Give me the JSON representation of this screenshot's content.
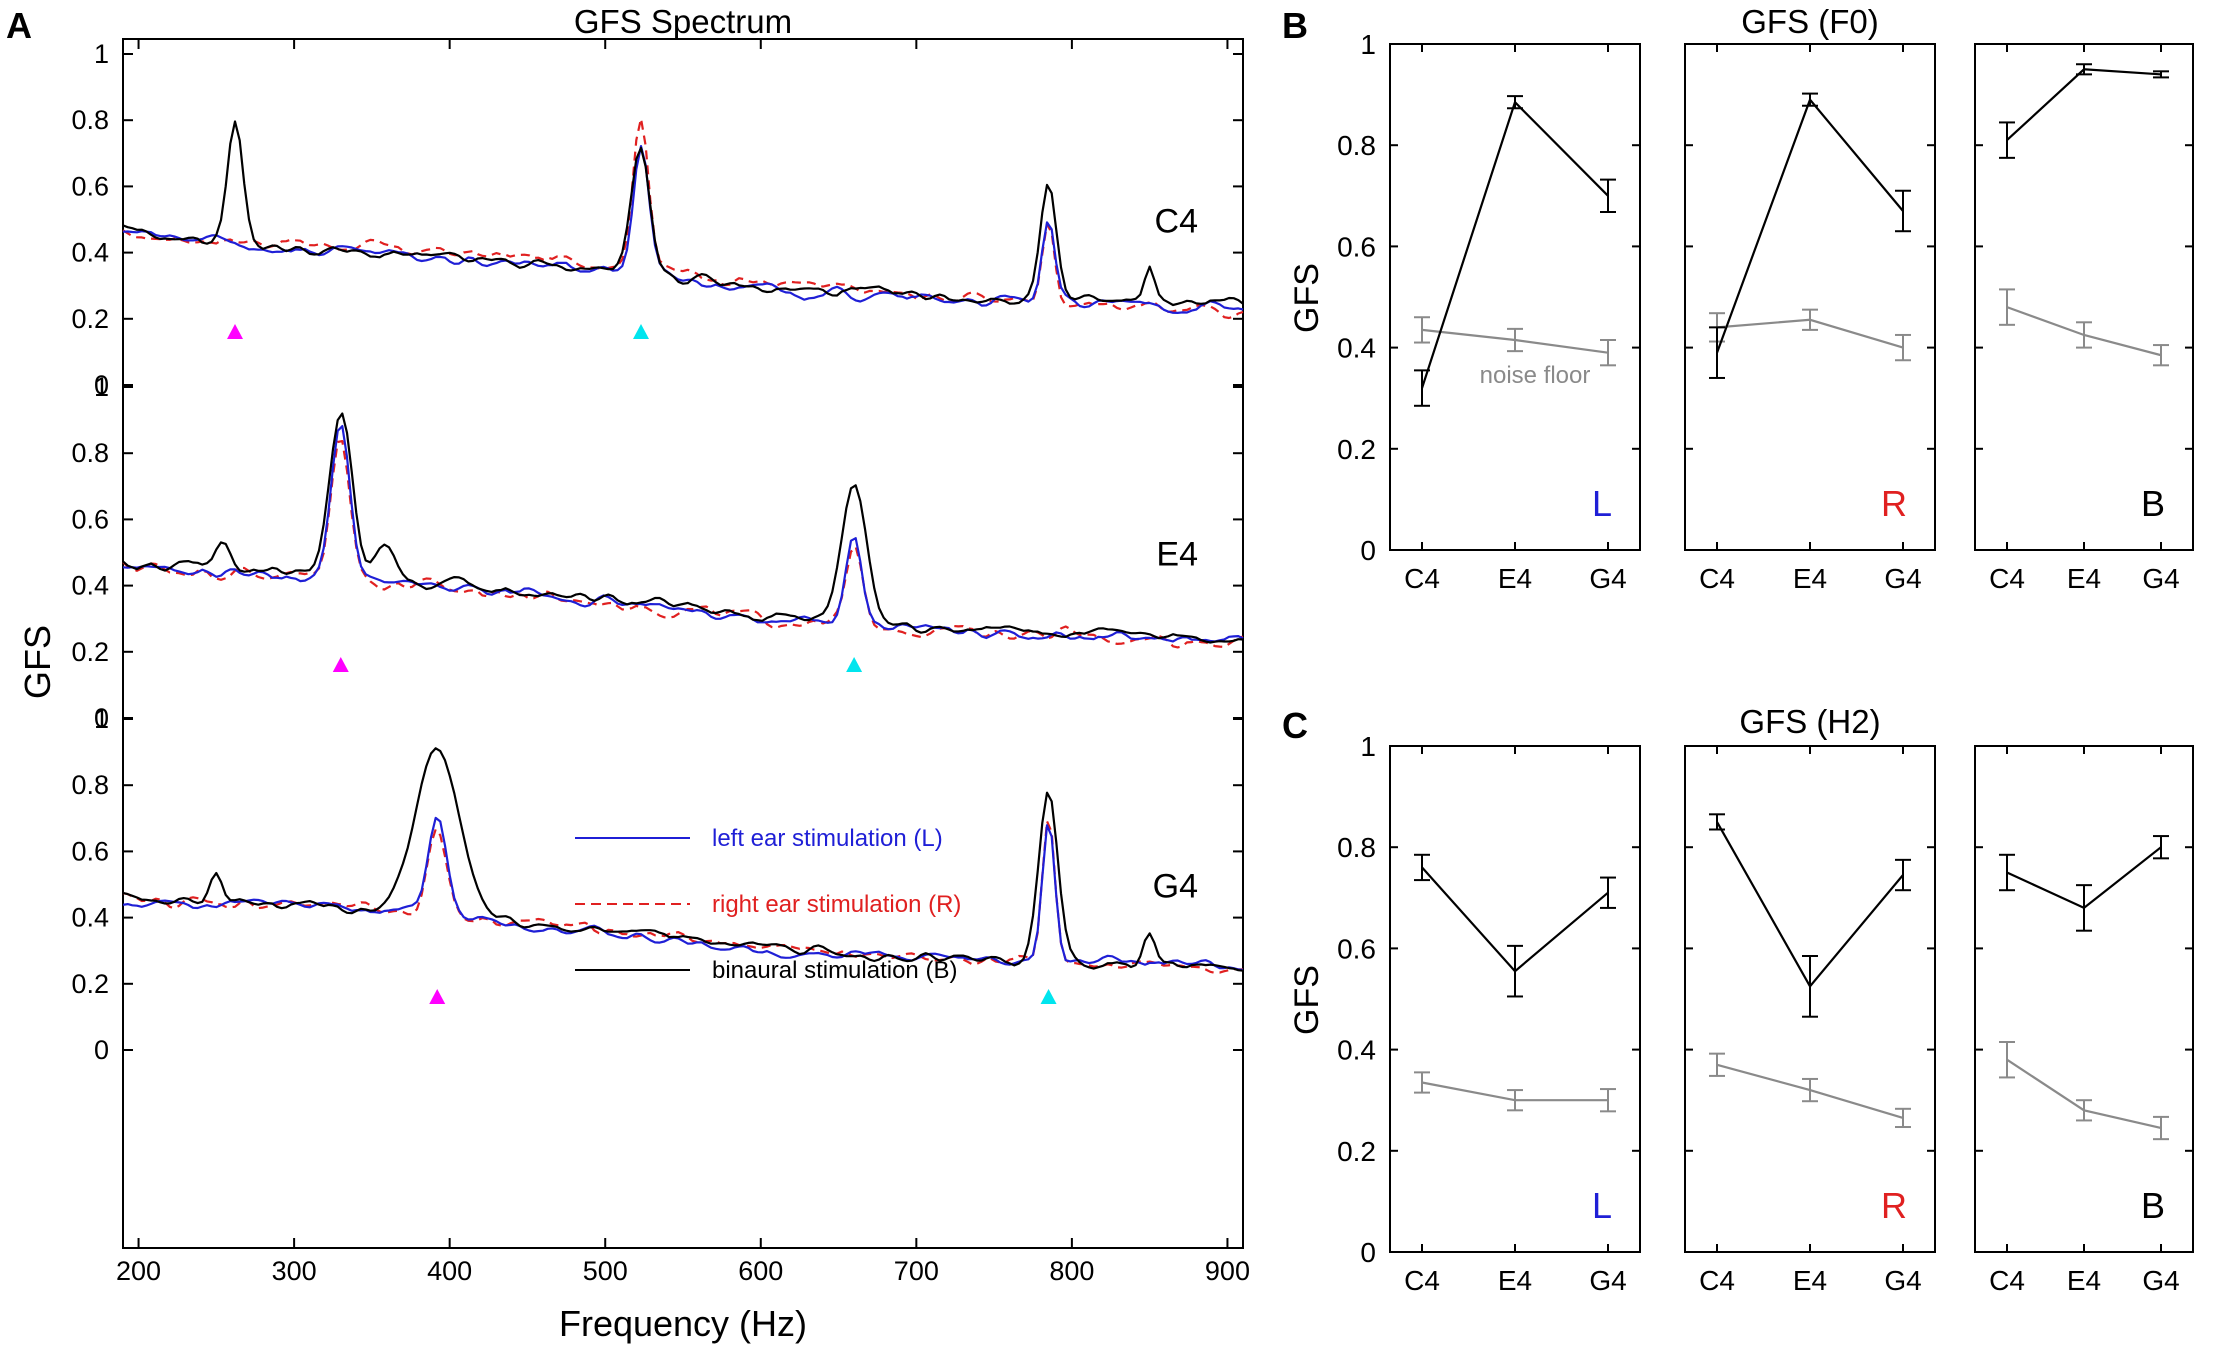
{
  "figure": {
    "panel_a_letter": "A",
    "panel_b_letter": "B",
    "panel_c_letter": "C"
  },
  "colors": {
    "left": "#1f1fd6",
    "right": "#e02020",
    "binaural": "#000000",
    "noise": "#8a8a8a",
    "f0_marker": "#ff00ff",
    "h2_marker": "#00e5ee"
  },
  "chart_data": [
    {
      "id": "spectrum",
      "type": "line",
      "title": "GFS Spectrum",
      "xlabel": "Frequency (Hz)",
      "ylabel": "GFS",
      "xlim": [
        190,
        910
      ],
      "ylim": [
        0,
        1
      ],
      "xticks": [
        200,
        300,
        400,
        500,
        600,
        700,
        800,
        900
      ],
      "yticks": [
        0,
        0.2,
        0.4,
        0.6,
        0.8,
        1
      ],
      "ytick_labels": [
        "0",
        "0.2",
        "0.4",
        "0.6",
        "0.8",
        "1"
      ],
      "legend": [
        {
          "label": "left ear stimulation (L)",
          "series": "left",
          "style": "solid"
        },
        {
          "label": "right ear stimulation (R)",
          "series": "right",
          "style": "dashed"
        },
        {
          "label": "binaural stimulation (B)",
          "series": "binaural",
          "style": "solid"
        }
      ],
      "rows": [
        {
          "note": "C4",
          "f0_marker_hz": 262,
          "h2_marker_hz": 523,
          "marker_level": 0.16,
          "series": {
            "left": {
              "base": [
                [
                  190,
                  0.46
                ],
                [
                  300,
                  0.41
                ],
                [
                  400,
                  0.38
                ],
                [
                  500,
                  0.35
                ],
                [
                  600,
                  0.29
                ],
                [
                  700,
                  0.26
                ],
                [
                  800,
                  0.25
                ],
                [
                  910,
                  0.23
                ]
              ],
              "peaks": [
                [
                  523,
                  0.38,
                  5
                ],
                [
                  785,
                  0.23,
                  4
                ]
              ],
              "noise": 0.03
            },
            "right": {
              "base": [
                [
                  190,
                  0.45
                ],
                [
                  300,
                  0.43
                ],
                [
                  400,
                  0.4
                ],
                [
                  500,
                  0.37
                ],
                [
                  600,
                  0.31
                ],
                [
                  700,
                  0.27
                ],
                [
                  800,
                  0.25
                ],
                [
                  910,
                  0.22
                ]
              ],
              "peaks": [
                [
                  523,
                  0.46,
                  5
                ],
                [
                  785,
                  0.24,
                  4
                ]
              ],
              "noise": 0.03
            },
            "binaural": {
              "base": [
                [
                  190,
                  0.46
                ],
                [
                  300,
                  0.41
                ],
                [
                  400,
                  0.38
                ],
                [
                  500,
                  0.35
                ],
                [
                  600,
                  0.29
                ],
                [
                  700,
                  0.27
                ],
                [
                  800,
                  0.25
                ],
                [
                  910,
                  0.25
                ]
              ],
              "peaks": [
                [
                  262,
                  0.37,
                  5
                ],
                [
                  523,
                  0.38,
                  6
                ],
                [
                  785,
                  0.37,
                  5
                ],
                [
                  850,
                  0.1,
                  3
                ]
              ],
              "noise": 0.03
            }
          },
          "peak_values": {
            "left": [
              0.76,
              0.48
            ],
            "right": [
              0.85,
              0.5
            ],
            "binaural": [
              0.8,
              0.76,
              0.66
            ]
          }
        },
        {
          "note": "E4",
          "f0_marker_hz": 330,
          "h2_marker_hz": 660,
          "marker_level": 0.16,
          "series": {
            "left": {
              "base": [
                [
                  190,
                  0.46
                ],
                [
                  300,
                  0.43
                ],
                [
                  400,
                  0.39
                ],
                [
                  500,
                  0.35
                ],
                [
                  600,
                  0.3
                ],
                [
                  700,
                  0.27
                ],
                [
                  800,
                  0.25
                ],
                [
                  910,
                  0.23
                ]
              ],
              "peaks": [
                [
                  330,
                  0.46,
                  6
                ],
                [
                  660,
                  0.25,
                  5
                ]
              ],
              "noise": 0.03
            },
            "right": {
              "base": [
                [
                  190,
                  0.46
                ],
                [
                  300,
                  0.43
                ],
                [
                  400,
                  0.39
                ],
                [
                  500,
                  0.35
                ],
                [
                  600,
                  0.3
                ],
                [
                  700,
                  0.27
                ],
                [
                  800,
                  0.25
                ],
                [
                  910,
                  0.23
                ]
              ],
              "peaks": [
                [
                  330,
                  0.44,
                  6
                ],
                [
                  660,
                  0.23,
                  5
                ]
              ],
              "noise": 0.035
            },
            "binaural": {
              "base": [
                [
                  190,
                  0.47
                ],
                [
                  300,
                  0.44
                ],
                [
                  400,
                  0.4
                ],
                [
                  500,
                  0.36
                ],
                [
                  600,
                  0.31
                ],
                [
                  700,
                  0.28
                ],
                [
                  800,
                  0.26
                ],
                [
                  910,
                  0.24
                ]
              ],
              "peaks": [
                [
                  330,
                  0.5,
                  7
                ],
                [
                  358,
                  0.12,
                  6
                ],
                [
                  660,
                  0.42,
                  8
                ],
                [
                  255,
                  0.08,
                  5
                ]
              ],
              "noise": 0.03
            }
          },
          "peak_values": {
            "left": [
              0.87,
              0.54
            ],
            "right": [
              0.85,
              0.52
            ],
            "binaural": [
              0.94,
              0.74
            ]
          }
        },
        {
          "note": "G4",
          "f0_marker_hz": 392,
          "h2_marker_hz": 785,
          "marker_level": 0.16,
          "series": {
            "left": {
              "base": [
                [
                  190,
                  0.44
                ],
                [
                  300,
                  0.44
                ],
                [
                  400,
                  0.41
                ],
                [
                  500,
                  0.35
                ],
                [
                  600,
                  0.3
                ],
                [
                  700,
                  0.28
                ],
                [
                  800,
                  0.27
                ],
                [
                  910,
                  0.25
                ]
              ],
              "peaks": [
                [
                  392,
                  0.28,
                  6
                ],
                [
                  785,
                  0.42,
                  4
                ]
              ],
              "noise": 0.025
            },
            "right": {
              "base": [
                [
                  190,
                  0.45
                ],
                [
                  300,
                  0.44
                ],
                [
                  400,
                  0.41
                ],
                [
                  500,
                  0.36
                ],
                [
                  600,
                  0.31
                ],
                [
                  700,
                  0.28
                ],
                [
                  800,
                  0.26
                ],
                [
                  910,
                  0.24
                ]
              ],
              "peaks": [
                [
                  392,
                  0.25,
                  6
                ],
                [
                  785,
                  0.45,
                  4
                ]
              ],
              "noise": 0.03
            },
            "binaural": {
              "base": [
                [
                  190,
                  0.46
                ],
                [
                  300,
                  0.44
                ],
                [
                  400,
                  0.41
                ],
                [
                  500,
                  0.36
                ],
                [
                  600,
                  0.31
                ],
                [
                  700,
                  0.28
                ],
                [
                  800,
                  0.26
                ],
                [
                  910,
                  0.25
                ]
              ],
              "peaks": [
                [
                  392,
                  0.5,
                  14
                ],
                [
                  785,
                  0.52,
                  6
                ],
                [
                  850,
                  0.1,
                  4
                ],
                [
                  250,
                  0.08,
                  4
                ]
              ],
              "noise": 0.025
            }
          },
          "peak_values": {
            "left": [
              0.71,
              0.69
            ],
            "right": [
              0.67,
              0.71
            ],
            "binaural": [
              0.93,
              0.8
            ]
          }
        }
      ]
    },
    {
      "id": "gfs_f0",
      "type": "line",
      "title": "GFS (F0)",
      "ylabel": "GFS",
      "categories": [
        "C4",
        "E4",
        "G4"
      ],
      "ylim": [
        0,
        1
      ],
      "yticks": [
        0,
        0.2,
        0.4,
        0.6,
        0.8,
        1
      ],
      "ytick_labels": [
        "0",
        "0.2",
        "0.4",
        "0.6",
        "0.8",
        "1"
      ],
      "annotation": "noise floor",
      "subpanels": [
        {
          "label": "L",
          "label_color": "#1f1fd6",
          "signal": {
            "values": [
              0.32,
              0.885,
              0.7
            ],
            "err": [
              0.035,
              0.012,
              0.032
            ]
          },
          "noise": {
            "values": [
              0.435,
              0.415,
              0.39
            ],
            "err": [
              0.025,
              0.022,
              0.025
            ]
          }
        },
        {
          "label": "R",
          "label_color": "#e02020",
          "signal": {
            "values": [
              0.39,
              0.89,
              0.67
            ],
            "err": [
              0.05,
              0.012,
              0.04
            ]
          },
          "noise": {
            "values": [
              0.44,
              0.455,
              0.4
            ],
            "err": [
              0.028,
              0.02,
              0.025
            ]
          }
        },
        {
          "label": "B",
          "label_color": "#000000",
          "signal": {
            "values": [
              0.81,
              0.95,
              0.94
            ],
            "err": [
              0.035,
              0.01,
              0.006
            ]
          },
          "noise": {
            "values": [
              0.48,
              0.425,
              0.385
            ],
            "err": [
              0.035,
              0.025,
              0.02
            ]
          }
        }
      ]
    },
    {
      "id": "gfs_h2",
      "type": "line",
      "title": "GFS (H2)",
      "ylabel": "GFS",
      "categories": [
        "C4",
        "E4",
        "G4"
      ],
      "ylim": [
        0,
        1
      ],
      "yticks": [
        0,
        0.2,
        0.4,
        0.6,
        0.8,
        1
      ],
      "ytick_labels": [
        "0",
        "0.2",
        "0.4",
        "0.6",
        "0.8",
        "1"
      ],
      "subpanels": [
        {
          "label": "L",
          "label_color": "#1f1fd6",
          "signal": {
            "values": [
              0.76,
              0.555,
              0.71
            ],
            "err": [
              0.025,
              0.05,
              0.03
            ]
          },
          "noise": {
            "values": [
              0.335,
              0.3,
              0.3
            ],
            "err": [
              0.02,
              0.02,
              0.022
            ]
          }
        },
        {
          "label": "R",
          "label_color": "#e02020",
          "signal": {
            "values": [
              0.85,
              0.525,
              0.745
            ],
            "err": [
              0.015,
              0.06,
              0.03
            ]
          },
          "noise": {
            "values": [
              0.37,
              0.32,
              0.265
            ],
            "err": [
              0.022,
              0.022,
              0.018
            ]
          }
        },
        {
          "label": "B",
          "label_color": "#000000",
          "signal": {
            "values": [
              0.75,
              0.68,
              0.8
            ],
            "err": [
              0.035,
              0.045,
              0.022
            ]
          },
          "noise": {
            "values": [
              0.38,
              0.28,
              0.245
            ],
            "err": [
              0.035,
              0.02,
              0.022
            ]
          }
        }
      ]
    }
  ]
}
